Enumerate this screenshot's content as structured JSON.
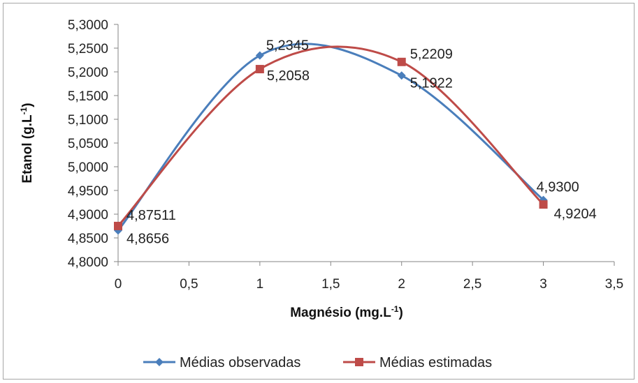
{
  "chart_data": {
    "type": "line",
    "xlabel": "Magnésio (mg.L",
    "xlabel_sup": "-1",
    "xlabel_end": ")",
    "ylabel": "Etanol (g.L",
    "ylabel_sup": "-1",
    "ylabel_end": ")",
    "xlim": [
      0,
      3.5
    ],
    "ylim": [
      4.8,
      5.3
    ],
    "x_ticks": [
      0,
      0.5,
      1,
      1.5,
      2,
      2.5,
      3,
      3.5
    ],
    "x_tick_labels": [
      "0",
      "0,5",
      "1",
      "1,5",
      "2",
      "2,5",
      "3",
      "3,5"
    ],
    "y_ticks": [
      4.8,
      4.85,
      4.9,
      4.95,
      5.0,
      5.05,
      5.1,
      5.15,
      5.2,
      5.25,
      5.3
    ],
    "y_tick_labels": [
      "4,8000",
      "4,8500",
      "4,9000",
      "4,9500",
      "5,0000",
      "5,0500",
      "5,1000",
      "5,1500",
      "5,2000",
      "5,2500",
      "5,3000"
    ],
    "grid": false,
    "smooth": true,
    "legend_position": "bottom",
    "series": [
      {
        "name": "Médias observadas",
        "color": "#4a7ebb",
        "marker": "diamond",
        "x": [
          0,
          1,
          2,
          3
        ],
        "y": [
          4.8656,
          5.2345,
          5.1922,
          4.93
        ],
        "labels": [
          "4,8656",
          "5,2345",
          "5,1922",
          "4,9300"
        ]
      },
      {
        "name": "Médias estimadas",
        "color": "#be4b48",
        "marker": "square",
        "x": [
          0,
          1,
          2,
          3
        ],
        "y": [
          4.87511,
          5.2058,
          5.2209,
          4.9204
        ],
        "labels": [
          "4,87511",
          "5,2058",
          "5,2209",
          "4,9204"
        ]
      }
    ]
  }
}
